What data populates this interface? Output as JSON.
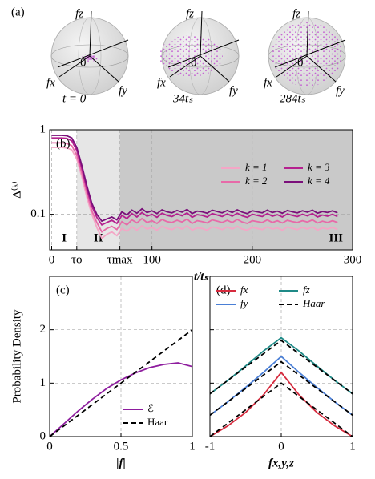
{
  "figure_a": {
    "label": "(a)",
    "axis_labels": {
      "z": "fz",
      "x": "fx",
      "y": "fy",
      "origin": 0
    },
    "times": [
      "t = 0",
      "34tₛ",
      "284tₛ"
    ]
  },
  "chart_data": [
    {
      "type": "line",
      "panel_label": "(b)",
      "x": [
        0,
        5,
        10,
        15,
        20,
        25,
        30,
        35,
        40,
        45,
        50,
        55,
        60,
        65,
        70,
        75,
        80,
        85,
        90,
        95,
        100,
        105,
        110,
        115,
        120,
        125,
        130,
        135,
        140,
        145,
        150,
        155,
        160,
        165,
        170,
        175,
        180,
        185,
        190,
        195,
        200,
        205,
        210,
        215,
        220,
        225,
        230,
        235,
        240,
        245,
        250,
        255,
        260,
        265,
        270,
        275,
        280,
        285
      ],
      "series": [
        {
          "name": "k = 1",
          "color": "#f4a6c6",
          "values": [
            0.62,
            0.62,
            0.62,
            0.61,
            0.58,
            0.45,
            0.28,
            0.16,
            0.1,
            0.07,
            0.052,
            0.058,
            0.062,
            0.056,
            0.068,
            0.063,
            0.071,
            0.065,
            0.073,
            0.067,
            0.07,
            0.065,
            0.072,
            0.068,
            0.066,
            0.071,
            0.067,
            0.073,
            0.065,
            0.069,
            0.068,
            0.065,
            0.071,
            0.069,
            0.066,
            0.071,
            0.067,
            0.072,
            0.067,
            0.065,
            0.07,
            0.068,
            0.066,
            0.071,
            0.067,
            0.069,
            0.065,
            0.071,
            0.068,
            0.066,
            0.07,
            0.067,
            0.071,
            0.065,
            0.069,
            0.067,
            0.07,
            0.066
          ]
        },
        {
          "name": "k = 2",
          "color": "#e76aa8",
          "values": [
            0.7,
            0.7,
            0.7,
            0.69,
            0.65,
            0.5,
            0.31,
            0.18,
            0.11,
            0.08,
            0.062,
            0.068,
            0.072,
            0.066,
            0.082,
            0.075,
            0.086,
            0.079,
            0.089,
            0.08,
            0.084,
            0.078,
            0.087,
            0.082,
            0.08,
            0.085,
            0.081,
            0.088,
            0.078,
            0.084,
            0.082,
            0.079,
            0.086,
            0.083,
            0.08,
            0.085,
            0.08,
            0.087,
            0.081,
            0.078,
            0.084,
            0.082,
            0.08,
            0.086,
            0.08,
            0.084,
            0.079,
            0.085,
            0.082,
            0.08,
            0.084,
            0.081,
            0.086,
            0.079,
            0.083,
            0.08,
            0.084,
            0.08
          ]
        },
        {
          "name": "k = 3",
          "color": "#b5208f",
          "values": [
            0.8,
            0.8,
            0.8,
            0.79,
            0.74,
            0.57,
            0.35,
            0.2,
            0.125,
            0.092,
            0.075,
            0.08,
            0.085,
            0.078,
            0.097,
            0.089,
            0.102,
            0.093,
            0.105,
            0.095,
            0.1,
            0.092,
            0.103,
            0.097,
            0.094,
            0.101,
            0.096,
            0.104,
            0.092,
            0.099,
            0.097,
            0.093,
            0.102,
            0.098,
            0.094,
            0.101,
            0.095,
            0.103,
            0.096,
            0.092,
            0.1,
            0.097,
            0.094,
            0.102,
            0.095,
            0.099,
            0.093,
            0.101,
            0.097,
            0.094,
            0.1,
            0.096,
            0.102,
            0.093,
            0.098,
            0.095,
            0.1,
            0.094
          ]
        },
        {
          "name": "k = 4",
          "color": "#7a0f7a",
          "values": [
            0.86,
            0.86,
            0.86,
            0.85,
            0.8,
            0.62,
            0.38,
            0.22,
            0.135,
            0.1,
            0.083,
            0.088,
            0.093,
            0.086,
            0.107,
            0.098,
            0.112,
            0.103,
            0.116,
            0.105,
            0.11,
            0.102,
            0.113,
            0.107,
            0.104,
            0.111,
            0.106,
            0.114,
            0.102,
            0.109,
            0.107,
            0.103,
            0.112,
            0.108,
            0.104,
            0.111,
            0.105,
            0.113,
            0.106,
            0.102,
            0.11,
            0.107,
            0.104,
            0.112,
            0.105,
            0.109,
            0.103,
            0.111,
            0.107,
            0.104,
            0.11,
            0.106,
            0.112,
            0.103,
            0.108,
            0.105,
            0.11,
            0.104
          ]
        }
      ],
      "xlim": [
        -2,
        300
      ],
      "xticks": [
        0,
        {
          "value": 25,
          "label": "τo"
        },
        {
          "value": 68,
          "label": "τmax"
        },
        100,
        200,
        300
      ],
      "ylim": [
        0.038,
        1
      ],
      "yticks": [
        0.1,
        1
      ],
      "log_y": true,
      "grid": true,
      "xlabel": "t/tₛ",
      "ylabel": "Δ⁽ᵏ⁾",
      "regions": [
        {
          "label": "I",
          "x": [
            0,
            25
          ],
          "color": "#ffffff"
        },
        {
          "label": "II",
          "x": [
            25,
            68
          ],
          "color": "#e6e6e6"
        },
        {
          "label": "III",
          "x": [
            68,
            300
          ],
          "color": "#c9c9c9"
        }
      ],
      "legend": "upper right",
      "legend_columns": 2
    },
    {
      "type": "line",
      "panel_label": "(c)",
      "x": [
        0,
        0.1,
        0.2,
        0.3,
        0.4,
        0.5,
        0.6,
        0.7,
        0.8,
        0.9,
        1
      ],
      "series": [
        {
          "name": "ℰ",
          "color": "#8e1d9e",
          "values": [
            0,
            0.24,
            0.48,
            0.7,
            0.9,
            1.06,
            1.19,
            1.29,
            1.35,
            1.38,
            1.31
          ]
        },
        {
          "name": "Haar",
          "color": "#000000",
          "dashed": true,
          "x": [
            0,
            1
          ],
          "values": [
            0,
            2
          ]
        }
      ],
      "xlim": [
        0,
        1
      ],
      "xticks": [
        0,
        0.5,
        1
      ],
      "ylim": [
        0,
        3
      ],
      "yticks": [
        0,
        1,
        2
      ],
      "grid": true,
      "xlabel": "|f|",
      "ylabel": "Probability Density",
      "legend": "lower right",
      "legend_columns": 1
    },
    {
      "type": "line",
      "panel_label": "(d)",
      "x": [
        -1,
        -0.75,
        -0.5,
        -0.25,
        0,
        0.25,
        0.5,
        0.75,
        1
      ],
      "series": [
        {
          "name": "fx",
          "color": "#d62b3e",
          "values": [
            0,
            0.2,
            0.45,
            0.78,
            1.2,
            0.78,
            0.45,
            0.2,
            0
          ]
        },
        {
          "name": "fy",
          "color": "#4a7fd6",
          "values": [
            0.4,
            0.65,
            0.92,
            1.2,
            1.5,
            1.2,
            0.92,
            0.65,
            0.4
          ]
        },
        {
          "name": "fz",
          "color": "#1f8a87",
          "values": [
            0.8,
            1.05,
            1.32,
            1.6,
            1.85,
            1.6,
            1.32,
            1.05,
            0.8
          ]
        },
        {
          "name": "Haar",
          "color": "#000000",
          "dashed": true,
          "values": [
            0,
            0.25,
            0.5,
            0.75,
            1,
            0.75,
            0.5,
            0.25,
            0
          ]
        },
        {
          "name": "Haar",
          "color": "#000000",
          "dashed": true,
          "values": [
            0.4,
            0.65,
            0.9,
            1.15,
            1.4,
            1.15,
            0.9,
            0.65,
            0.4
          ]
        },
        {
          "name": "Haar",
          "color": "#000000",
          "dashed": true,
          "values": [
            0.8,
            1.05,
            1.3,
            1.55,
            1.8,
            1.55,
            1.3,
            1.05,
            0.8
          ]
        }
      ],
      "xlim": [
        -1,
        1
      ],
      "xticks": [
        -1,
        0,
        1
      ],
      "ylim": [
        0,
        3
      ],
      "yticks": [
        0,
        1,
        2
      ],
      "show_ytick_labels": false,
      "grid": true,
      "xlabel": "fx,y,z",
      "legend": "upper left",
      "legend_columns": 2
    }
  ]
}
